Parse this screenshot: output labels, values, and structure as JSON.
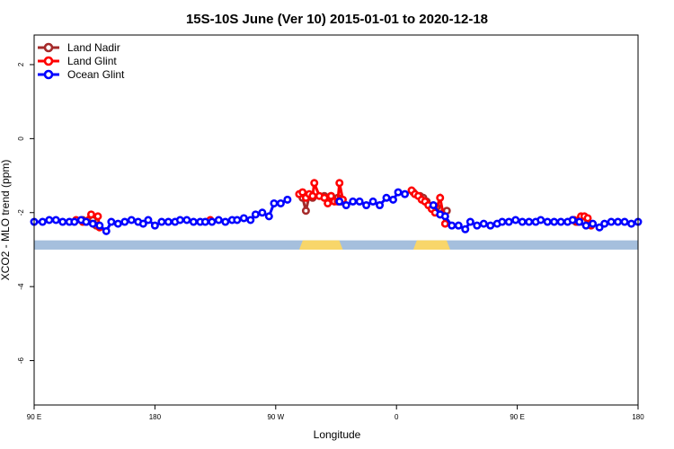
{
  "chart_data": {
    "type": "line",
    "title": "15S-10S June (Ver 10)   2015-01-01 to 2020-12-18",
    "xlabel": "Longitude",
    "ylabel": "XCO2 - MLO trend (ppm)",
    "xlim": [
      90,
      450
    ],
    "ylim": [
      -7.2,
      2.8
    ],
    "x_ticks": [
      {
        "value": 90,
        "label": "90 E"
      },
      {
        "value": 162,
        "label": "180"
      },
      {
        "value": 234,
        "label": "90 W"
      },
      {
        "value": 306,
        "label": "0"
      },
      {
        "value": 378,
        "label": "90 E"
      },
      {
        "value": 450,
        "label": "180"
      }
    ],
    "y_ticks": [
      {
        "value": 2,
        "label": "2"
      },
      {
        "value": 0,
        "label": "0"
      },
      {
        "value": -2,
        "label": "-2"
      },
      {
        "value": -4,
        "label": "-4"
      },
      {
        "value": -6,
        "label": "-6"
      }
    ],
    "grid": false,
    "legend_position": "top-left",
    "series": [
      {
        "name": "Land Nadir",
        "color": "#a52a2a",
        "points": [
          [
            119,
            -2.2
          ],
          [
            121,
            -2.25
          ],
          [
            123,
            -2.2
          ],
          [
            125,
            -2.2
          ],
          [
            127,
            -2.35
          ],
          [
            250,
            -1.6
          ],
          [
            252,
            -1.95
          ],
          [
            254,
            -1.55
          ],
          [
            256,
            -1.6
          ],
          [
            263,
            -1.55
          ],
          [
            265,
            -1.6
          ],
          [
            267,
            -1.55
          ],
          [
            269,
            -1.65
          ],
          [
            271,
            -1.6
          ],
          [
            273,
            -1.7
          ],
          [
            316,
            -1.45
          ],
          [
            320,
            -1.55
          ],
          [
            322,
            -1.6
          ],
          [
            324,
            -1.7
          ],
          [
            330,
            -1.85
          ],
          [
            332,
            -2.05
          ],
          [
            334,
            -2.0
          ],
          [
            336,
            -1.95
          ],
          [
            411,
            -2.2
          ],
          [
            413,
            -2.25
          ],
          [
            415,
            -2.2
          ],
          [
            417,
            -2.25
          ],
          [
            421,
            -2.3
          ]
        ]
      },
      {
        "name": "Land Glint",
        "color": "#ff0000",
        "points": [
          [
            115,
            -2.2
          ],
          [
            119,
            -2.25
          ],
          [
            124,
            -2.05
          ],
          [
            128,
            -2.1
          ],
          [
            129,
            -2.4
          ],
          [
            195,
            -2.2
          ],
          [
            248,
            -1.5
          ],
          [
            250,
            -1.45
          ],
          [
            252,
            -1.6
          ],
          [
            254,
            -1.5
          ],
          [
            256,
            -1.55
          ],
          [
            257,
            -1.2
          ],
          [
            260,
            -1.55
          ],
          [
            263,
            -1.6
          ],
          [
            265,
            -1.75
          ],
          [
            267,
            -1.55
          ],
          [
            269,
            -1.7
          ],
          [
            271,
            -1.7
          ],
          [
            272,
            -1.2
          ],
          [
            274,
            -1.65
          ],
          [
            315,
            -1.4
          ],
          [
            317,
            -1.5
          ],
          [
            319,
            -1.55
          ],
          [
            321,
            -1.65
          ],
          [
            323,
            -1.7
          ],
          [
            325,
            -1.8
          ],
          [
            327,
            -1.9
          ],
          [
            329,
            -2.0
          ],
          [
            332,
            -1.6
          ],
          [
            335,
            -2.3
          ],
          [
            412,
            -2.2
          ],
          [
            414,
            -2.25
          ],
          [
            416,
            -2.1
          ],
          [
            418,
            -2.1
          ],
          [
            420,
            -2.15
          ],
          [
            422,
            -2.35
          ]
        ]
      },
      {
        "name": "Ocean Glint",
        "color": "#0000ff",
        "points": [
          [
            90,
            -2.25
          ],
          [
            95,
            -2.25
          ],
          [
            99,
            -2.2
          ],
          [
            103,
            -2.2
          ],
          [
            107,
            -2.25
          ],
          [
            111,
            -2.25
          ],
          [
            114,
            -2.25
          ],
          [
            118,
            -2.2
          ],
          [
            121,
            -2.25
          ],
          [
            125,
            -2.3
          ],
          [
            129,
            -2.35
          ],
          [
            133,
            -2.5
          ],
          [
            136,
            -2.25
          ],
          [
            140,
            -2.3
          ],
          [
            144,
            -2.25
          ],
          [
            148,
            -2.2
          ],
          [
            152,
            -2.25
          ],
          [
            155,
            -2.3
          ],
          [
            158,
            -2.2
          ],
          [
            162,
            -2.35
          ],
          [
            166,
            -2.25
          ],
          [
            170,
            -2.25
          ],
          [
            174,
            -2.25
          ],
          [
            177,
            -2.2
          ],
          [
            181,
            -2.2
          ],
          [
            185,
            -2.25
          ],
          [
            189,
            -2.25
          ],
          [
            192,
            -2.25
          ],
          [
            196,
            -2.25
          ],
          [
            200,
            -2.2
          ],
          [
            204,
            -2.25
          ],
          [
            208,
            -2.2
          ],
          [
            211,
            -2.2
          ],
          [
            215,
            -2.15
          ],
          [
            219,
            -2.2
          ],
          [
            222,
            -2.05
          ],
          [
            226,
            -2.0
          ],
          [
            230,
            -2.1
          ],
          [
            233,
            -1.75
          ],
          [
            237,
            -1.75
          ],
          [
            241,
            -1.65
          ],
          [
            272,
            -1.7
          ],
          [
            276,
            -1.8
          ],
          [
            280,
            -1.7
          ],
          [
            284,
            -1.7
          ],
          [
            288,
            -1.8
          ],
          [
            292,
            -1.7
          ],
          [
            296,
            -1.8
          ],
          [
            300,
            -1.6
          ],
          [
            304,
            -1.65
          ],
          [
            307,
            -1.45
          ],
          [
            311,
            -1.5
          ],
          [
            328,
            -1.8
          ],
          [
            332,
            -2.05
          ],
          [
            335,
            -2.1
          ],
          [
            339,
            -2.35
          ],
          [
            343,
            -2.35
          ],
          [
            347,
            -2.45
          ],
          [
            350,
            -2.25
          ],
          [
            354,
            -2.35
          ],
          [
            358,
            -2.3
          ],
          [
            362,
            -2.35
          ],
          [
            366,
            -2.3
          ],
          [
            369,
            -2.25
          ],
          [
            373,
            -2.25
          ],
          [
            377,
            -2.2
          ],
          [
            381,
            -2.25
          ],
          [
            385,
            -2.25
          ],
          [
            389,
            -2.25
          ],
          [
            392,
            -2.2
          ],
          [
            396,
            -2.25
          ],
          [
            400,
            -2.25
          ],
          [
            404,
            -2.25
          ],
          [
            408,
            -2.25
          ],
          [
            411,
            -2.2
          ],
          [
            415,
            -2.25
          ],
          [
            419,
            -2.35
          ],
          [
            423,
            -2.3
          ],
          [
            427,
            -2.4
          ],
          [
            430,
            -2.3
          ],
          [
            434,
            -2.25
          ],
          [
            438,
            -2.25
          ],
          [
            442,
            -2.25
          ],
          [
            446,
            -2.3
          ],
          [
            450,
            -2.25
          ]
        ]
      }
    ],
    "background_band": {
      "y_range": [
        -3.0,
        -2.75
      ],
      "ocean_color": "#a5bfdd",
      "land_color": "#f8d66a",
      "land_x_ranges": [
        [
          248,
          274
        ],
        [
          316,
          338
        ]
      ]
    }
  }
}
